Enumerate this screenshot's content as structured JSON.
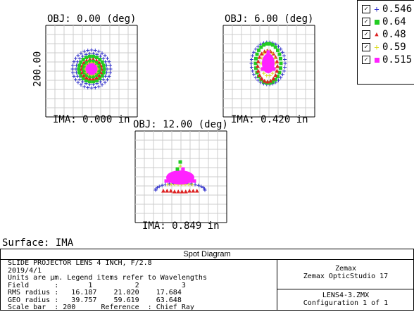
{
  "legend": [
    {
      "marker": "plus",
      "color": "#3333cc",
      "value": "0.546"
    },
    {
      "marker": "square",
      "color": "#22cc22",
      "value": "0.64"
    },
    {
      "marker": "triangle",
      "color": "#dd2222",
      "value": "0.48"
    },
    {
      "marker": "plus",
      "color": "#dddd22",
      "value": "0.59"
    },
    {
      "marker": "square",
      "color": "#ff22ff",
      "value": "0.515"
    }
  ],
  "plots": [
    {
      "obj": "OBJ: 0.00 (deg)",
      "ima": "IMA: 0.000 in",
      "scale": "200.00"
    },
    {
      "obj": "OBJ: 6.00 (deg)",
      "ima": "IMA: 0.420 in"
    },
    {
      "obj": "OBJ: 12.00 (deg)",
      "ima": "IMA: 0.849 in"
    }
  ],
  "surface": "Surface: IMA",
  "panel": {
    "title": "Spot Diagram",
    "lines": [
      "SLIDE PROJECTOR LENS 4 INCH, F/2.8",
      "2019/4/1",
      "Units are μm. Legend items refer to Wavelengths",
      "Field      :       1          2          3",
      "RMS radius :   16.187    21.020    17.684",
      "GEO radius :   39.757    59.619    63.648",
      "Scale bar  : 200      Reference  : Chief Ray"
    ],
    "company": "Zemax",
    "product": "Zemax OpticStudio 17",
    "file": "LENS4-3.ZMX",
    "config": "Configuration 1 of 1"
  }
}
